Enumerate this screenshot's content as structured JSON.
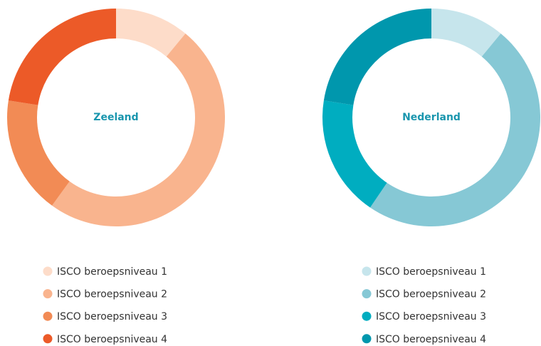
{
  "chart_data": [
    {
      "type": "pie",
      "title": "Zeeland",
      "categories": [
        "ISCO beroepsniveau 1",
        "ISCO beroepsniveau 2",
        "ISCO beroepsniveau 3",
        "ISCO beroepsniveau 4"
      ],
      "values": [
        11,
        49,
        17.5,
        22.5
      ],
      "colors": [
        "#fddcc9",
        "#f9b48e",
        "#f28b55",
        "#ec5a28"
      ]
    },
    {
      "type": "pie",
      "title": "Nederland",
      "categories": [
        "ISCO beroepsniveau 1",
        "ISCO beroepsniveau 2",
        "ISCO beroepsniveau 3",
        "ISCO beroepsniveau 4"
      ],
      "values": [
        11,
        48.5,
        18,
        22.5
      ],
      "colors": [
        "#c6e5ec",
        "#86c8d5",
        "#00adc0",
        "#0097ad"
      ]
    }
  ]
}
